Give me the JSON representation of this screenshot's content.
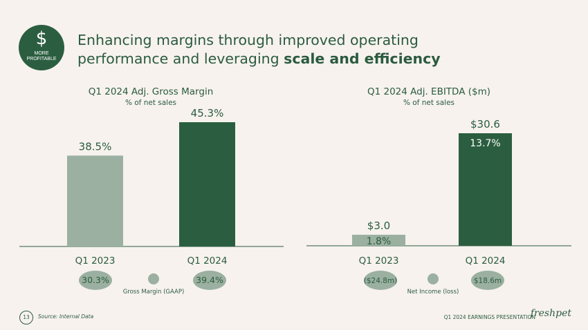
{
  "badge": {
    "symbol": "$",
    "line1": "MORE",
    "line2": "PROFITABLE"
  },
  "title": {
    "line1": "Enhancing margins through improved operating",
    "line2_plain": "performance and leveraging ",
    "line2_bold": "scale and efficiency"
  },
  "colors": {
    "dark_green": "#2b5e40",
    "light_green": "#9bb0a0",
    "bg": "#f7f2ee"
  },
  "chart_data": [
    {
      "type": "bar",
      "title": "Q1 2024 Adj. Gross Margin",
      "subtitle": "% of net sales",
      "categories": [
        "Q1 2023",
        "Q1 2024"
      ],
      "values": [
        38.5,
        45.3
      ],
      "value_labels": [
        "38.5%",
        "45.3%"
      ],
      "ylim": [
        20,
        50
      ],
      "ellipse_labels": [
        "30.3%",
        "39.4%"
      ],
      "legend_label": "Gross Margin (GAAP)"
    },
    {
      "type": "bar",
      "title": "Q1 2024 Adj. EBITDA ($m)",
      "subtitle": "% of net sales",
      "categories": [
        "Q1 2023",
        "Q1 2024"
      ],
      "values": [
        3.0,
        30.6
      ],
      "value_labels": [
        "$3.0",
        "$30.6"
      ],
      "inner_labels": [
        "1.8%",
        "13.7%"
      ],
      "ylim": [
        0,
        34
      ],
      "ellipse_labels": [
        "($24.8m)",
        "$18.6m"
      ],
      "legend_label": "Net Income (loss)"
    }
  ],
  "footer": {
    "page": "13",
    "source": "Source: Internal Data",
    "presentation": "Q1 2024 EARNINGS PRESENTATION",
    "logo": "freshpet"
  }
}
